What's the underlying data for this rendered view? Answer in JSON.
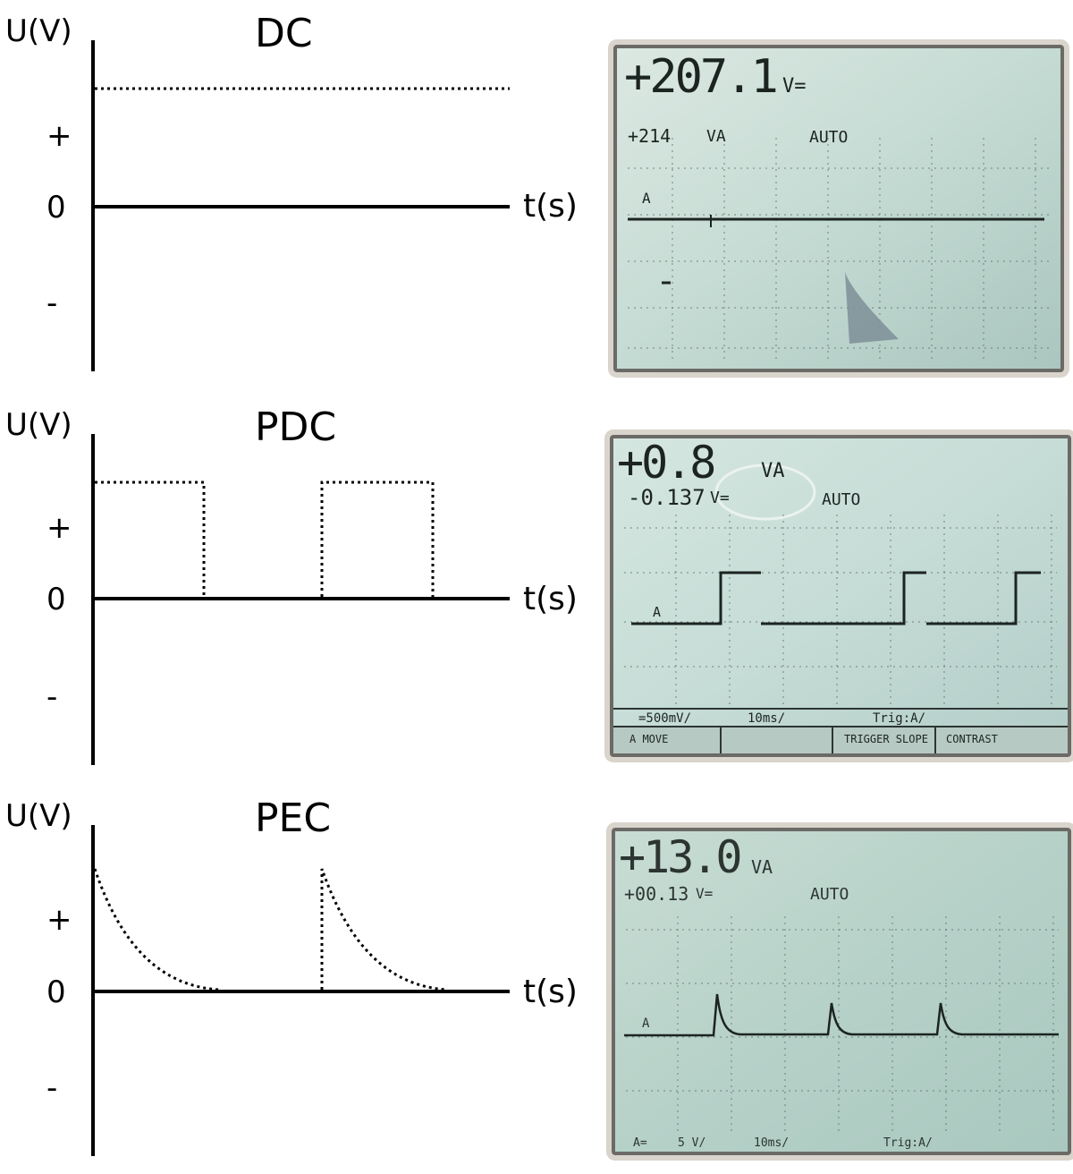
{
  "panels": [
    {
      "title": "DC",
      "ylabel": "U(V)",
      "xlabel": "t(s)",
      "plus": "+",
      "zero": "0",
      "minus": "-",
      "waveform": "constant",
      "scope": {
        "reading_main": "+207.1",
        "reading_main_unit": "V=",
        "reading_sub": "+214",
        "reading_sub_unit": "VA",
        "mode": "AUTO",
        "channel": "A"
      }
    },
    {
      "title": "PDC",
      "ylabel": "U(V)",
      "xlabel": "t(s)",
      "plus": "+",
      "zero": "0",
      "minus": "-",
      "waveform": "square",
      "scope": {
        "reading_main": "+0.8",
        "reading_main_unit": "VA",
        "reading_sub": "-0.137",
        "reading_sub_unit": "V=",
        "mode": "AUTO",
        "channel": "A",
        "status": [
          "=500mV/",
          "10ms/",
          "Trig:A/"
        ],
        "softkeys": [
          "A MOVE",
          "",
          "TRIGGER SLOPE",
          "CONTRAST"
        ]
      }
    },
    {
      "title": "PEC",
      "ylabel": "U(V)",
      "xlabel": "t(s)",
      "plus": "+",
      "zero": "0",
      "minus": "-",
      "waveform": "exponential-decay",
      "scope": {
        "reading_main": "+13.0",
        "reading_main_unit": "VA",
        "reading_sub": "+00.13",
        "reading_sub_unit": "V=",
        "mode": "AUTO",
        "channel": "A",
        "status": [
          "A=",
          "5 V/",
          "10ms/",
          "Trig:A/"
        ]
      }
    }
  ],
  "colors": {
    "axis": "#000000",
    "lcd_bg": "#c9ddd6",
    "lcd_bg_alt": "#b8d3cb",
    "lcd_ink": "#1c2421",
    "bezel": "#6b6a66"
  }
}
